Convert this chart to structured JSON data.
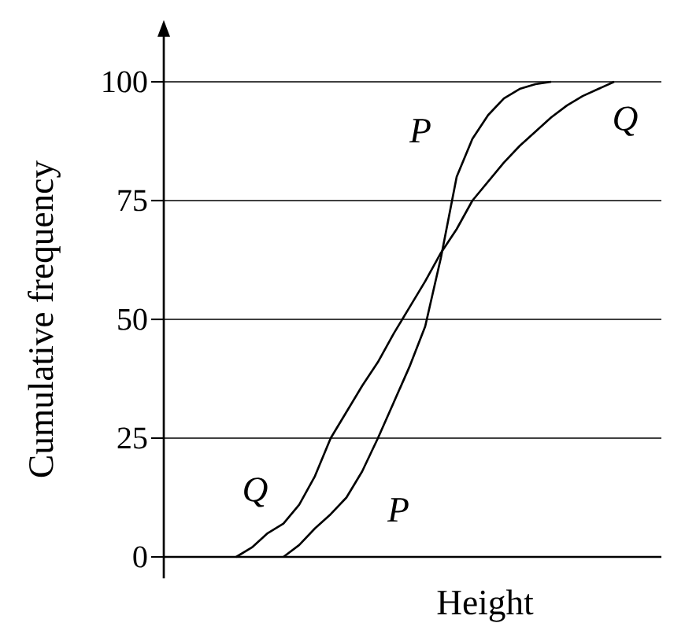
{
  "chart_data": {
    "type": "line",
    "xlabel": "Height",
    "ylabel": "Cumulative frequency",
    "categories": [
      null,
      null,
      null,
      null,
      null,
      null,
      null,
      null,
      null,
      null,
      null,
      null,
      null,
      null,
      null,
      null,
      null,
      null,
      null,
      null,
      null,
      null,
      null,
      null,
      null,
      null,
      null,
      null,
      null,
      null,
      null,
      null,
      null
    ],
    "series": [
      {
        "name": "P",
        "color": "#000000",
        "values": [
          null,
          null,
          null,
          null,
          null,
          null,
          null,
          null,
          0,
          2.5,
          6,
          9,
          12.5,
          18,
          25,
          32.5,
          40,
          48.5,
          63,
          80,
          88,
          93,
          96.5,
          98.5,
          99.5,
          100,
          null,
          null,
          null,
          null,
          null,
          null,
          null
        ]
      },
      {
        "name": "Q",
        "color": "#000000",
        "values": [
          null,
          null,
          null,
          null,
          null,
          0,
          2,
          5,
          7,
          11,
          17,
          25,
          30.5,
          36,
          41,
          47,
          52.5,
          58,
          64,
          69,
          75,
          79,
          83,
          86.5,
          89.5,
          92.5,
          95,
          97,
          98.5,
          100,
          null,
          null,
          null
        ]
      }
    ],
    "ylim": [
      0,
      100
    ],
    "yticks": [
      0,
      25,
      50,
      75,
      100
    ],
    "grid": "y",
    "tick_labels": "y",
    "marker": "none",
    "line_style": "solid",
    "legend": false
  }
}
